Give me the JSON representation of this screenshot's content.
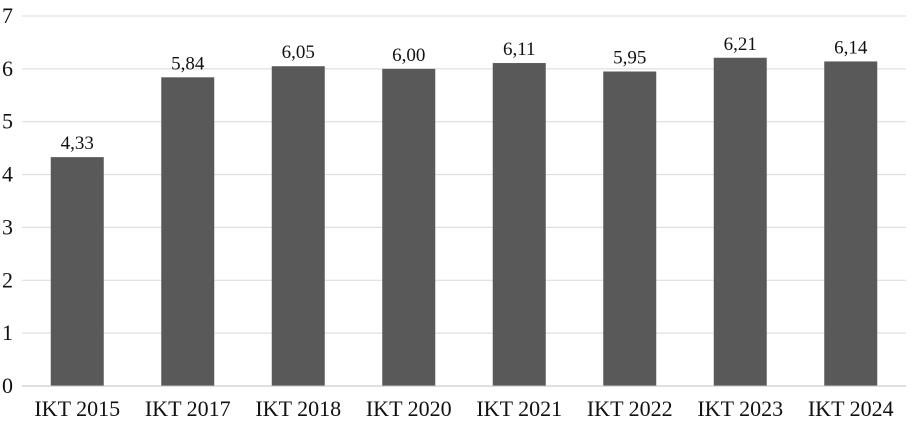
{
  "chart_data": {
    "type": "bar",
    "categories": [
      "IKT 2015",
      "IKT 2017",
      "IKT 2018",
      "IKT 2020",
      "IKT 2021",
      "IKT 2022",
      "IKT 2023",
      "IKT 2024"
    ],
    "values": [
      4.33,
      5.84,
      6.05,
      6.0,
      6.11,
      5.95,
      6.21,
      6.14
    ],
    "data_labels": [
      "4,33",
      "5,84",
      "6,05",
      "6,00",
      "6,11",
      "5,95",
      "6,21",
      "6,14"
    ],
    "title": "",
    "xlabel": "",
    "ylabel": "",
    "ylim": [
      0,
      7
    ],
    "yticks": [
      0,
      1,
      2,
      3,
      4,
      5,
      6,
      7
    ],
    "grid": true,
    "legend": "none",
    "bar_color": "#595959",
    "grid_color": "#d9d9d9"
  }
}
